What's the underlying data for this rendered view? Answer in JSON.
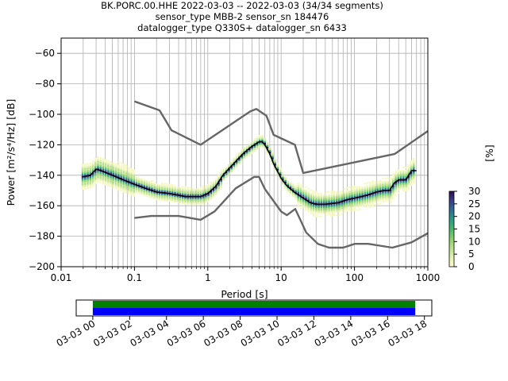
{
  "chart_data": {
    "type": "line",
    "title_lines": [
      "BK.PORC.00.HHE   2022-03-03 -- 2022-03-03  (34/34 segments)",
      "sensor_type MBB-2 sensor_sn 184476",
      "datalogger_type Q330S+ datalogger_sn 6433"
    ],
    "xlabel": "Period [s]",
    "ylabel": "Power [m²/s⁴/Hz] [dB]",
    "xscale": "log",
    "xlim": [
      0.01,
      1000
    ],
    "ylim": [
      -200,
      -50
    ],
    "xticks": [
      0.01,
      0.1,
      1,
      10,
      100,
      1000
    ],
    "xtick_labels": [
      "0.01",
      "0.1",
      "1",
      "10",
      "100",
      "1000"
    ],
    "yticks": [
      -200,
      -180,
      -160,
      -140,
      -120,
      -100,
      -80,
      -60
    ],
    "ytick_labels": [
      "−200",
      "−180",
      "−160",
      "−140",
      "−120",
      "−100",
      "−80",
      "−60"
    ],
    "grid": true,
    "colorbar": {
      "label": "[%]",
      "ticks": [
        0,
        5,
        10,
        15,
        20,
        25,
        30
      ],
      "tick_labels": [
        "0",
        "5",
        "10",
        "15",
        "20",
        "25",
        "30"
      ],
      "range": [
        0,
        30
      ]
    },
    "series": [
      {
        "role": "mode",
        "color": "#000000",
        "x": [
          0.02,
          0.025,
          0.03,
          0.035,
          0.05,
          0.07,
          0.1,
          0.15,
          0.2,
          0.3,
          0.5,
          0.8,
          1,
          1.3,
          1.6,
          2,
          2.5,
          3,
          4,
          5,
          5.5,
          6,
          7,
          8,
          10,
          12,
          15,
          20,
          25,
          30,
          40,
          60,
          80,
          100,
          150,
          200,
          250,
          300,
          350,
          400,
          500,
          600,
          700
        ],
        "y": [
          -141,
          -140,
          -136,
          -137,
          -140,
          -143,
          -146,
          -149,
          -151,
          -152,
          -154,
          -154,
          -152,
          -147,
          -140,
          -135,
          -130,
          -126,
          -121,
          -118,
          -118,
          -120,
          -126,
          -133,
          -142,
          -147,
          -151,
          -155,
          -158,
          -159,
          -159,
          -158,
          -156,
          -155,
          -153,
          -151,
          -150,
          -150,
          -145,
          -143,
          -143,
          -137,
          -137
        ]
      },
      {
        "role": "nhnm",
        "color": "#666666",
        "x": [
          0.1,
          0.22,
          0.32,
          0.8,
          3.8,
          4.6,
          6.3,
          7.9,
          15.4,
          20,
          354.8,
          1000
        ],
        "y": [
          -91.5,
          -97.4,
          -110.5,
          -120,
          -98,
          -96.5,
          -101,
          -113.5,
          -120,
          -138.5,
          -126,
          -111
        ]
      },
      {
        "role": "nlnm",
        "color": "#666666",
        "x": [
          0.1,
          0.17,
          0.4,
          0.8,
          1.24,
          2.4,
          4.3,
          5,
          6,
          10,
          12,
          15.6,
          21.9,
          31.6,
          45,
          70,
          101,
          154,
          328,
          600,
          1000
        ],
        "y": [
          -168,
          -166.7,
          -166.7,
          -169.2,
          -163.7,
          -148.6,
          -141.1,
          -141.1,
          -149,
          -163.8,
          -166.2,
          -162.1,
          -177.5,
          -185,
          -187.5,
          -187.5,
          -185,
          -185,
          -187.5,
          -184,
          -178
        ]
      }
    ],
    "time_axis": {
      "tick_labels": [
        "03-03 00",
        "03-03 02",
        "03-03 04",
        "03-03 06",
        "03-03 08",
        "03-03 10",
        "03-03 12",
        "03-03 14",
        "03-03 16",
        "03-03 18"
      ],
      "range_hours": [
        -0.9,
        18.4
      ],
      "data_hours": [
        0,
        17.5
      ],
      "coverage_colors": [
        "#008000",
        "#0000ff"
      ]
    }
  }
}
